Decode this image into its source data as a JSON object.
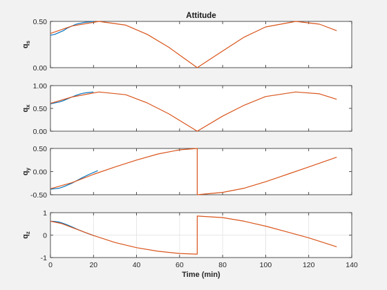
{
  "figure": {
    "background": "#f2f2f2"
  },
  "chart_data": [
    {
      "type": "line",
      "title": "Attitude",
      "ylabel": "q",
      "ylabel_sub": "s",
      "xlabel": "",
      "xlim": [
        0,
        140
      ],
      "ylim": [
        0,
        0.5
      ],
      "xticks": [
        0,
        20,
        40,
        60,
        80,
        100,
        120,
        140
      ],
      "xtick_labels": [
        "",
        "",
        "",
        "",
        "",
        "",
        "",
        ""
      ],
      "yticks": [
        0,
        0.5
      ],
      "ytick_labels": [
        "0.00",
        "0.50"
      ],
      "grid": false,
      "series": [
        {
          "color": "#0072bd",
          "x": [
            0,
            2,
            4,
            6,
            8,
            10,
            12,
            14,
            16,
            18,
            20
          ],
          "y": [
            0.35,
            0.36,
            0.38,
            0.4,
            0.43,
            0.45,
            0.47,
            0.48,
            0.49,
            0.495,
            0.5
          ]
        },
        {
          "color": "#d95319",
          "x": [
            0,
            10,
            22.5,
            35,
            45,
            55,
            68.2,
            80,
            90,
            100,
            114,
            125,
            133
          ],
          "y": [
            0.37,
            0.45,
            0.5,
            0.46,
            0.36,
            0.22,
            0.0,
            0.18,
            0.33,
            0.44,
            0.5,
            0.47,
            0.4
          ]
        }
      ]
    },
    {
      "type": "line",
      "title": "",
      "ylabel": "q",
      "ylabel_sub": "x",
      "xlabel": "",
      "xlim": [
        0,
        140
      ],
      "ylim": [
        0,
        1
      ],
      "xticks": [
        0,
        20,
        40,
        60,
        80,
        100,
        120,
        140
      ],
      "xtick_labels": [
        "",
        "",
        "",
        "",
        "",
        "",
        "",
        ""
      ],
      "yticks": [
        0,
        0.5,
        1
      ],
      "ytick_labels": [
        "0.00",
        "0.50",
        "1.00"
      ],
      "grid": false,
      "series": [
        {
          "color": "#0072bd",
          "x": [
            0,
            2,
            4,
            6,
            8,
            10,
            12,
            14,
            16,
            18,
            20
          ],
          "y": [
            0.6,
            0.62,
            0.64,
            0.67,
            0.71,
            0.75,
            0.79,
            0.82,
            0.84,
            0.85,
            0.86
          ]
        },
        {
          "color": "#d95319",
          "x": [
            0,
            10,
            22.5,
            35,
            45,
            55,
            68.2,
            80,
            90,
            100,
            114,
            125,
            133
          ],
          "y": [
            0.61,
            0.75,
            0.86,
            0.8,
            0.62,
            0.38,
            0.0,
            0.33,
            0.57,
            0.76,
            0.86,
            0.82,
            0.7
          ]
        }
      ]
    },
    {
      "type": "line",
      "title": "",
      "ylabel": "q",
      "ylabel_sub": "y",
      "xlabel": "",
      "xlim": [
        0,
        140
      ],
      "ylim": [
        -0.5,
        0.5
      ],
      "xticks": [
        0,
        20,
        40,
        60,
        80,
        100,
        120,
        140
      ],
      "xtick_labels": [
        "",
        "",
        "",
        "",
        "",
        "",
        "",
        ""
      ],
      "yticks": [
        -0.5,
        0,
        0.5
      ],
      "ytick_labels": [
        "-0.50",
        "0.00",
        "0.50"
      ],
      "grid": false,
      "series": [
        {
          "color": "#0072bd",
          "x": [
            0,
            2,
            4,
            6,
            8,
            10,
            14,
            18,
            22
          ],
          "y": [
            -0.38,
            -0.37,
            -0.36,
            -0.33,
            -0.29,
            -0.25,
            -0.15,
            -0.06,
            0.02
          ]
        },
        {
          "color": "#d95319",
          "x": [
            0,
            10,
            20,
            30,
            40,
            50,
            60,
            68.2,
            68.2,
            80,
            90,
            100,
            110,
            120,
            133
          ],
          "y": [
            -0.37,
            -0.24,
            -0.06,
            0.1,
            0.25,
            0.38,
            0.47,
            0.5,
            -0.5,
            -0.45,
            -0.36,
            -0.22,
            -0.06,
            0.1,
            0.31
          ]
        }
      ]
    },
    {
      "type": "line",
      "title": "",
      "ylabel": "q",
      "ylabel_sub": "z",
      "xlabel": "Time (min)",
      "xlim": [
        0,
        140
      ],
      "ylim": [
        -1,
        1
      ],
      "xticks": [
        0,
        20,
        40,
        60,
        80,
        100,
        120,
        140
      ],
      "xtick_labels": [
        "0",
        "20",
        "40",
        "60",
        "80",
        "100",
        "120",
        "140"
      ],
      "yticks": [
        -1,
        0,
        1
      ],
      "ytick_labels": [
        "-1",
        "0",
        "1"
      ],
      "grid": true,
      "series": [
        {
          "color": "#0072bd",
          "x": [
            0,
            2,
            4,
            6,
            8,
            10,
            12,
            16,
            20
          ],
          "y": [
            0.62,
            0.61,
            0.58,
            0.52,
            0.45,
            0.37,
            0.28,
            0.12,
            -0.02
          ]
        },
        {
          "color": "#d95319",
          "x": [
            0,
            5,
            10,
            20,
            30,
            40,
            50,
            60,
            68.2,
            68.2,
            80,
            90,
            100,
            110,
            120,
            133
          ],
          "y": [
            0.62,
            0.52,
            0.34,
            -0.02,
            -0.33,
            -0.56,
            -0.72,
            -0.82,
            -0.85,
            0.85,
            0.78,
            0.62,
            0.4,
            0.14,
            -0.12,
            -0.52
          ]
        }
      ]
    }
  ]
}
